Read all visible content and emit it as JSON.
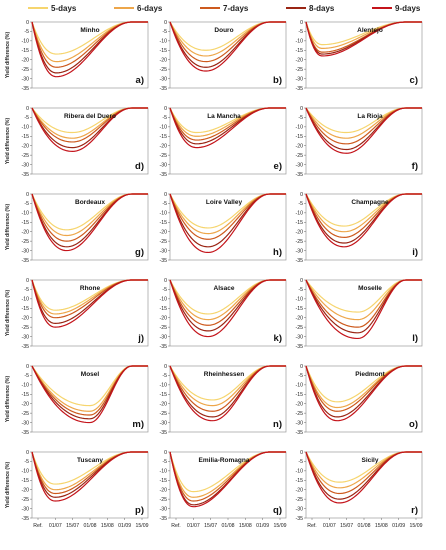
{
  "legend": [
    "5-days",
    "6-days",
    "7-days",
    "8-days",
    "9-days"
  ],
  "colors": [
    "#f6d56e",
    "#eda64a",
    "#cd5a1e",
    "#9a2514",
    "#c4141b"
  ],
  "chart_data": {
    "type": "line",
    "ylabel": "Yield difference (%)",
    "yticks": [
      0,
      -5,
      -10,
      -15,
      -20,
      -25,
      -30,
      -35
    ],
    "ylim": [
      -35,
      0
    ],
    "xticks": [
      "Ref.",
      "01/07",
      "15/07",
      "01/08",
      "15/08",
      "01/09",
      "15/09"
    ],
    "series_names": [
      "5-days",
      "6-days",
      "7-days",
      "8-days",
      "9-days"
    ],
    "panels": [
      {
        "title": "Minho",
        "letter": "a)",
        "min_x": 0.21,
        "min_y": [
          -17,
          -21,
          -24,
          -27,
          -29
        ]
      },
      {
        "title": "Douro",
        "letter": "b)",
        "min_x": 0.31,
        "min_y": [
          -15,
          -18,
          -21,
          -24,
          -26
        ]
      },
      {
        "title": "Alentejo",
        "letter": "c)",
        "min_x": 0.14,
        "min_y": [
          -12,
          -14,
          -16,
          -17,
          -18
        ]
      },
      {
        "title": "Ribera del Duero",
        "letter": "d)",
        "min_x": 0.35,
        "min_y": [
          -13,
          -16,
          -18,
          -21,
          -23
        ]
      },
      {
        "title": "La Mancha",
        "letter": "e)",
        "min_x": 0.23,
        "min_y": [
          -13,
          -15,
          -17,
          -19,
          -21
        ]
      },
      {
        "title": "La Rioja",
        "letter": "f)",
        "min_x": 0.35,
        "min_y": [
          -13,
          -16,
          -19,
          -22,
          -24
        ]
      },
      {
        "title": "Bordeaux",
        "letter": "g)",
        "min_x": 0.3,
        "min_y": [
          -19,
          -22,
          -25,
          -28,
          -30
        ]
      },
      {
        "title": "Loire Valley",
        "letter": "h)",
        "min_x": 0.33,
        "min_y": [
          -18,
          -21,
          -24,
          -28,
          -31
        ]
      },
      {
        "title": "Champagne",
        "letter": "i)",
        "min_x": 0.33,
        "min_y": [
          -17,
          -20,
          -23,
          -26,
          -28
        ]
      },
      {
        "title": "Rhone",
        "letter": "j)",
        "min_x": 0.2,
        "min_y": [
          -16,
          -18,
          -20,
          -23,
          -25
        ]
      },
      {
        "title": "Alsace",
        "letter": "k)",
        "min_x": 0.33,
        "min_y": [
          -18,
          -21,
          -24,
          -27,
          -30
        ]
      },
      {
        "title": "Moselle",
        "letter": "l)",
        "min_x": 0.45,
        "min_y": [
          -17,
          -21,
          -25,
          -28,
          -31
        ]
      },
      {
        "title": "Mosel",
        "letter": "m)",
        "min_x": 0.5,
        "min_y": [
          -21,
          -24,
          -26,
          -28,
          -30
        ]
      },
      {
        "title": "Rheinhessen",
        "letter": "n)",
        "min_x": 0.37,
        "min_y": [
          -18,
          -21,
          -24,
          -27,
          -29
        ]
      },
      {
        "title": "Piedmont",
        "letter": "o)",
        "min_x": 0.27,
        "min_y": [
          -19,
          -22,
          -24,
          -27,
          -29
        ]
      },
      {
        "title": "Tuscany",
        "letter": "p)",
        "min_x": 0.2,
        "min_y": [
          -17,
          -20,
          -22,
          -24,
          -26
        ]
      },
      {
        "title": "Emilia-Romagna",
        "letter": "q)",
        "min_x": 0.2,
        "min_y": [
          -21,
          -24,
          -26,
          -28,
          -29
        ]
      },
      {
        "title": "Sicily",
        "letter": "r)",
        "min_x": 0.29,
        "min_y": [
          -16,
          -19,
          -22,
          -25,
          -27
        ]
      }
    ]
  }
}
